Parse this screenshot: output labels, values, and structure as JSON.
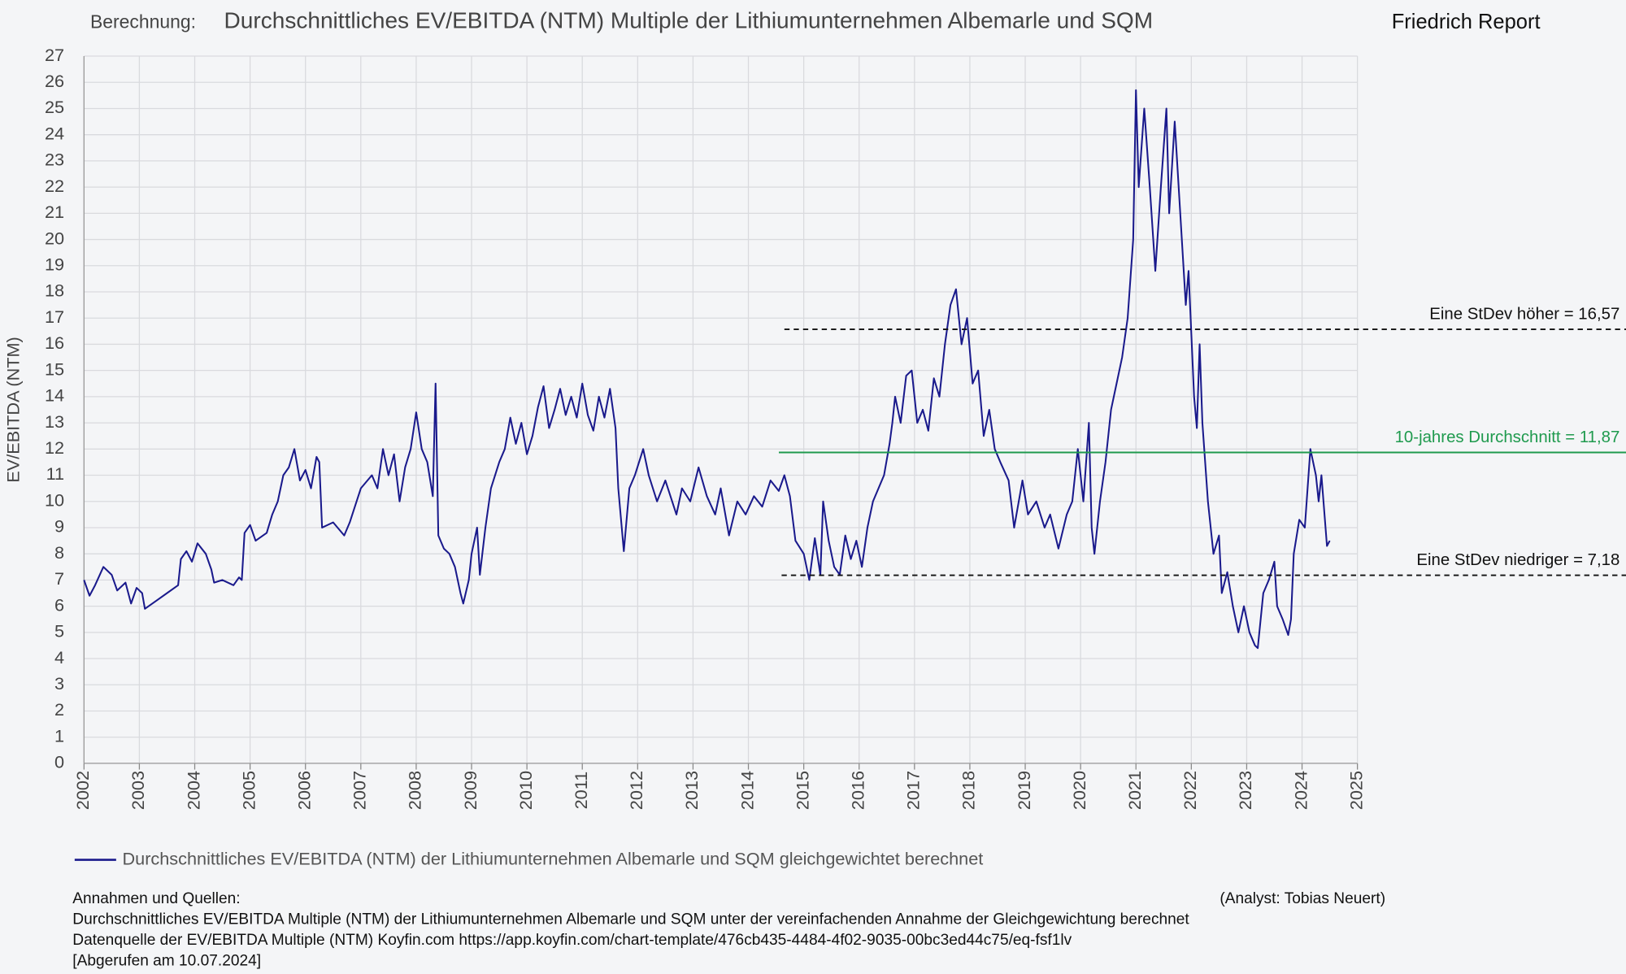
{
  "chart_data": {
    "type": "line",
    "title_prefix": "Berechnung:",
    "title": "Durchschnittliches EV/EBITDA (NTM) Multiple der Lithiumunternehmen Albemarle und SQM",
    "brand": "Friedrich Report",
    "y_label": "EV/EBITDA (NTM)",
    "xlim": [
      2002,
      2025
    ],
    "xticks": [
      2002,
      2003,
      2004,
      2005,
      2006,
      2007,
      2008,
      2009,
      2010,
      2011,
      2012,
      2013,
      2014,
      2015,
      2016,
      2017,
      2018,
      2019,
      2020,
      2021,
      2022,
      2023,
      2024,
      2025
    ],
    "ylim": [
      0,
      27
    ],
    "yticks": [
      0,
      1,
      2,
      3,
      4,
      5,
      6,
      7,
      8,
      9,
      10,
      11,
      12,
      13,
      14,
      15,
      16,
      17,
      18,
      19,
      20,
      21,
      22,
      23,
      24,
      25,
      26,
      27
    ],
    "grid": true,
    "x": [
      2002.0,
      2002.1,
      2002.2,
      2002.35,
      2002.5,
      2002.6,
      2002.75,
      2002.85,
      2002.95,
      2003.05,
      2003.1,
      2003.3,
      2003.5,
      2003.7,
      2003.75,
      2003.85,
      2003.95,
      2004.05,
      2004.2,
      2004.3,
      2004.35,
      2004.5,
      2004.7,
      2004.8,
      2004.85,
      2004.9,
      2005.0,
      2005.1,
      2005.3,
      2005.4,
      2005.5,
      2005.6,
      2005.7,
      2005.8,
      2005.9,
      2006.0,
      2006.1,
      2006.2,
      2006.25,
      2006.3,
      2006.5,
      2006.7,
      2006.8,
      2007.0,
      2007.2,
      2007.3,
      2007.4,
      2007.5,
      2007.6,
      2007.7,
      2007.8,
      2007.9,
      2008.0,
      2008.1,
      2008.2,
      2008.3,
      2008.35,
      2008.4,
      2008.5,
      2008.6,
      2008.7,
      2008.8,
      2008.85,
      2008.95,
      2009.0,
      2009.1,
      2009.15,
      2009.25,
      2009.35,
      2009.5,
      2009.6,
      2009.7,
      2009.8,
      2009.9,
      2010.0,
      2010.1,
      2010.2,
      2010.3,
      2010.4,
      2010.5,
      2010.6,
      2010.7,
      2010.8,
      2010.9,
      2011.0,
      2011.1,
      2011.2,
      2011.3,
      2011.4,
      2011.5,
      2011.6,
      2011.65,
      2011.75,
      2011.85,
      2011.95,
      2012.1,
      2012.2,
      2012.35,
      2012.5,
      2012.7,
      2012.8,
      2012.95,
      2013.1,
      2013.25,
      2013.4,
      2013.5,
      2013.65,
      2013.8,
      2013.95,
      2014.1,
      2014.25,
      2014.4,
      2014.55,
      2014.65,
      2014.75,
      2014.85,
      2015.0,
      2015.1,
      2015.2,
      2015.3,
      2015.35,
      2015.45,
      2015.55,
      2015.65,
      2015.75,
      2015.85,
      2015.95,
      2016.05,
      2016.15,
      2016.25,
      2016.35,
      2016.45,
      2016.55,
      2016.6,
      2016.65,
      2016.75,
      2016.85,
      2016.95,
      2017.05,
      2017.15,
      2017.25,
      2017.35,
      2017.45,
      2017.55,
      2017.65,
      2017.75,
      2017.85,
      2017.95,
      2018.05,
      2018.15,
      2018.25,
      2018.35,
      2018.45,
      2018.55,
      2018.7,
      2018.8,
      2018.95,
      2019.05,
      2019.2,
      2019.35,
      2019.45,
      2019.6,
      2019.75,
      2019.85,
      2019.95,
      2020.05,
      2020.15,
      2020.2,
      2020.25,
      2020.35,
      2020.45,
      2020.55,
      2020.65,
      2020.75,
      2020.85,
      2020.95,
      2021.0,
      2021.05,
      2021.15,
      2021.25,
      2021.35,
      2021.45,
      2021.55,
      2021.6,
      2021.7,
      2021.8,
      2021.9,
      2021.95,
      2022.05,
      2022.1,
      2022.15,
      2022.2,
      2022.3,
      2022.4,
      2022.5,
      2022.55,
      2022.65,
      2022.75,
      2022.85,
      2022.95,
      2023.05,
      2023.15,
      2023.2,
      2023.3,
      2023.4,
      2023.5,
      2023.55,
      2023.65,
      2023.75,
      2023.8,
      2023.85,
      2023.95,
      2024.05,
      2024.15,
      2024.25,
      2024.3,
      2024.35,
      2024.45,
      2024.5
    ],
    "series": [
      {
        "name": "Durchschnittliches EV/EBITDA (NTM) der Lithiumunternehmen Albemarle und SQM gleichgewichtet berechnet",
        "color": "#1a1a8c",
        "values": [
          7.0,
          6.4,
          6.8,
          7.5,
          7.2,
          6.6,
          6.9,
          6.1,
          6.7,
          6.5,
          5.9,
          6.2,
          6.5,
          6.8,
          7.8,
          8.1,
          7.7,
          8.4,
          8.0,
          7.4,
          6.9,
          7.0,
          6.8,
          7.1,
          7.0,
          8.8,
          9.1,
          8.5,
          8.8,
          9.5,
          10.0,
          11.0,
          11.3,
          12.0,
          10.8,
          11.2,
          10.5,
          11.7,
          11.5,
          9.0,
          9.2,
          8.7,
          9.2,
          10.5,
          11.0,
          10.5,
          12.0,
          11.0,
          11.8,
          10.0,
          11.3,
          12.0,
          13.4,
          12.0,
          11.5,
          10.2,
          14.5,
          8.7,
          8.2,
          8.0,
          7.5,
          6.5,
          6.1,
          7.0,
          8.0,
          9.0,
          7.2,
          9.0,
          10.5,
          11.5,
          12.0,
          13.2,
          12.2,
          13.0,
          11.8,
          12.5,
          13.6,
          14.4,
          12.8,
          13.5,
          14.3,
          13.3,
          14.0,
          13.2,
          14.5,
          13.3,
          12.7,
          14.0,
          13.2,
          14.3,
          12.8,
          10.5,
          8.1,
          10.5,
          11.0,
          12.0,
          11.0,
          10.0,
          10.8,
          9.5,
          10.5,
          10.0,
          11.3,
          10.2,
          9.5,
          10.5,
          8.7,
          10.0,
          9.5,
          10.2,
          9.8,
          10.8,
          10.4,
          11.0,
          10.2,
          8.5,
          8.0,
          7.0,
          8.6,
          7.2,
          10.0,
          8.5,
          7.5,
          7.2,
          8.7,
          7.8,
          8.5,
          7.5,
          9.0,
          10.0,
          10.5,
          11.0,
          12.2,
          13.0,
          14.0,
          13.0,
          14.8,
          15.0,
          13.0,
          13.5,
          12.7,
          14.7,
          14.0,
          16.0,
          17.5,
          18.1,
          16.0,
          17.0,
          14.5,
          15.0,
          12.5,
          13.5,
          12.0,
          11.5,
          10.8,
          9.0,
          10.8,
          9.5,
          10.0,
          9.0,
          9.5,
          8.2,
          9.5,
          10.0,
          12.0,
          10.0,
          13.0,
          9.0,
          8.0,
          10.0,
          11.5,
          13.5,
          14.5,
          15.5,
          17.0,
          20.0,
          25.7,
          22.0,
          25.0,
          22.0,
          18.8,
          22.0,
          25.0,
          21.0,
          24.5,
          21.0,
          17.5,
          18.8,
          14.0,
          12.8,
          16.0,
          13.0,
          10.0,
          8.0,
          8.7,
          6.5,
          7.3,
          6.0,
          5.0,
          6.0,
          5.0,
          4.5,
          4.4,
          6.5,
          7.0,
          7.7,
          6.0,
          5.5,
          4.9,
          5.5,
          8.0,
          9.3,
          9.0,
          12.0,
          11.0,
          10.0,
          11.0,
          8.3,
          8.5
        ]
      }
    ],
    "reference_lines": [
      {
        "value": 16.57,
        "label": "Eine StDev höher = 16,57",
        "color": "#111111",
        "style": "dashed",
        "start": 2014.65
      },
      {
        "value": 11.87,
        "label": "10-jahres Durchschnitt = 11,87",
        "color": "#1f9a4e",
        "style": "solid",
        "start": 2014.55
      },
      {
        "value": 7.18,
        "label": "Eine StDev niedriger = 7,18",
        "color": "#111111",
        "style": "dashed",
        "start": 2014.6
      }
    ],
    "notes_heading": "Annahmen und Quellen:",
    "analyst": "(Analyst: Tobias Neuert)",
    "notes": [
      "Durchschnittliches EV/EBITDA Multiple (NTM) der Lithiumunternehmen Albemarle und SQM unter der vereinfachenden Annahme der Gleichgewichtung berechnet",
      "Datenquelle der EV/EBITDA Multiple (NTM) Koyfin.com https://app.koyfin.com/chart-template/476cb435-4484-4f02-9035-00bc3ed44c75/eq-fsf1lv",
      "[Abgerufen am 10.07.2024]"
    ]
  }
}
